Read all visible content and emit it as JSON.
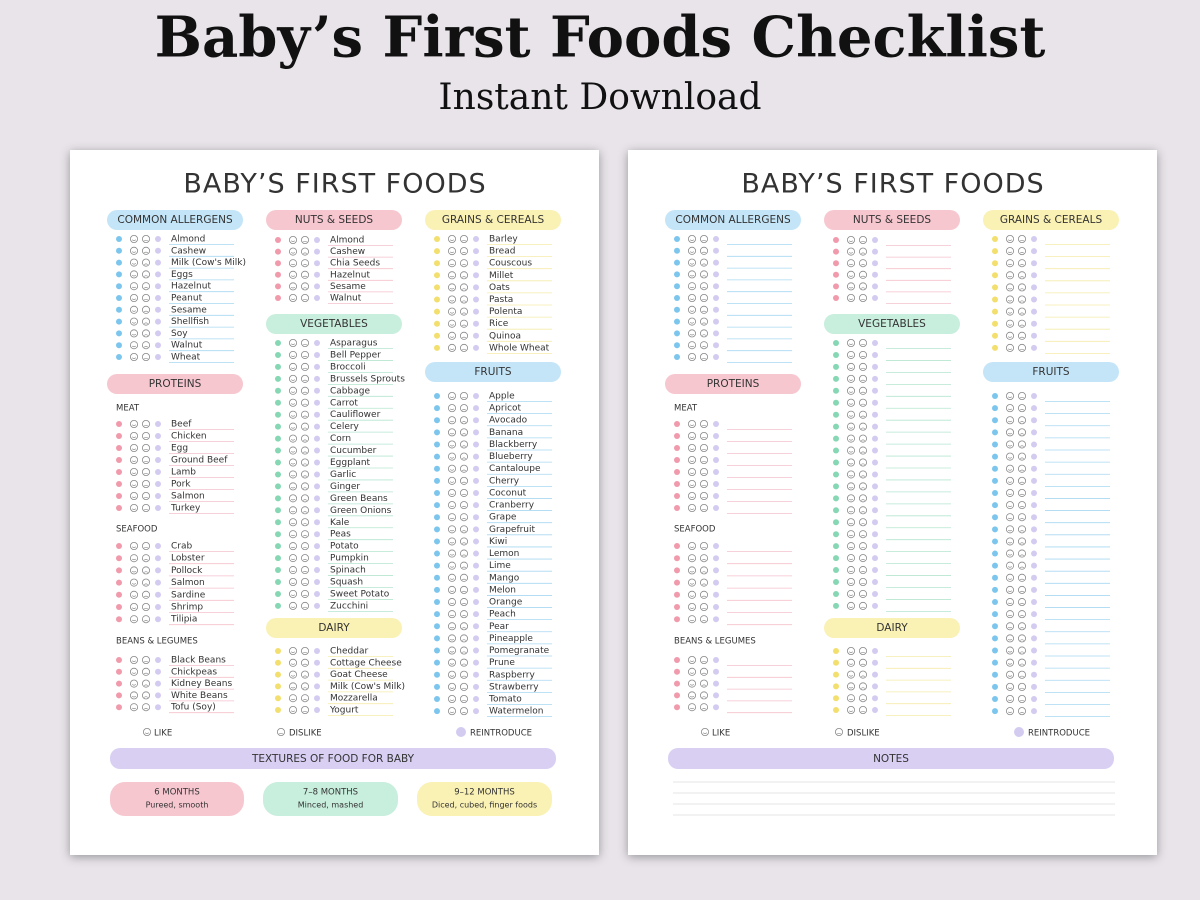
{
  "header": {
    "title": "Baby’s First Foods Checklist",
    "subtitle": "Instant Download"
  },
  "sheets": [
    {
      "title": "BABY’S FIRST FOODS",
      "sections": [
        {
          "heading": "COMMON ALLERGENS",
          "items": [
            "Almond",
            "Cashew",
            "Milk (Cow's Milk)",
            "Eggs",
            "Hazelnut",
            "Peanut",
            "Sesame",
            "Shellfish",
            "Soy",
            "Walnut",
            "Wheat"
          ]
        },
        {
          "heading": "PROTEINS",
          "groups": [
            {
              "label": "MEAT",
              "items": [
                "Beef",
                "Chicken",
                "Egg",
                "Ground Beef",
                "Lamb",
                "Pork",
                "Salmon",
                "Turkey"
              ]
            },
            {
              "label": "SEAFOOD",
              "items": [
                "Crab",
                "Lobster",
                "Pollock",
                "Salmon",
                "Sardine",
                "Shrimp",
                "Tilipia"
              ]
            },
            {
              "label": "BEANS & LEGUMES",
              "items": [
                "Black Beans",
                "Chickpeas",
                "Kidney Beans",
                "White Beans",
                "Tofu (Soy)"
              ]
            }
          ]
        },
        {
          "heading": "NUTS & SEEDS",
          "items": [
            "Almond",
            "Cashew",
            "Chia Seeds",
            "Hazelnut",
            "Sesame",
            "Walnut"
          ]
        },
        {
          "heading": "VEGETABLES",
          "items": [
            "Asparagus",
            "Bell Pepper",
            "Broccoli",
            "Brussels Sprouts",
            "Cabbage",
            "Carrot",
            "Cauliflower",
            "Celery",
            "Corn",
            "Cucumber",
            "Eggplant",
            "Garlic",
            "Ginger",
            "Green Beans",
            "Green Onions",
            "Kale",
            "Peas",
            "Potato",
            "Pumpkin",
            "Spinach",
            "Squash",
            "Sweet Potato",
            "Zucchini"
          ]
        },
        {
          "heading": "DAIRY",
          "items": [
            "Cheddar",
            "Cottage Cheese",
            "Goat Cheese",
            "Milk (Cow's Milk)",
            "Mozzarella",
            "Yogurt"
          ]
        },
        {
          "heading": "GRAINS & CEREALS",
          "items": [
            "Barley",
            "Bread",
            "Couscous",
            "Millet",
            "Oats",
            "Pasta",
            "Polenta",
            "Rice",
            "Quinoa",
            "Whole Wheat"
          ]
        },
        {
          "heading": "FRUITS",
          "items": [
            "Apple",
            "Apricot",
            "Avocado",
            "Banana",
            "Blackberry",
            "Blueberry",
            "Cantaloupe",
            "Cherry",
            "Coconut",
            "Cranberry",
            "Grape",
            "Grapefruit",
            "Kiwi",
            "Lemon",
            "Lime",
            "Mango",
            "Melon",
            "Orange",
            "Peach",
            "Pear",
            "Pineapple",
            "Pomegranate",
            "Prune",
            "Raspberry",
            "Strawberry",
            "Tomato",
            "Watermelon"
          ]
        }
      ],
      "legend": [
        "LIKE",
        "DISLIKE",
        "REINTRODUCE"
      ],
      "footer": {
        "heading": "TEXTURES OF FOOD FOR BABY",
        "cards": [
          {
            "title": "6 MONTHS",
            "text": "Pureed, smooth"
          },
          {
            "title": "7–8 MONTHS",
            "text": "Minced, mashed"
          },
          {
            "title": "9–12 MONTHS",
            "text": "Diced, cubed, finger foods"
          }
        ]
      }
    },
    {
      "title": "BABY’S FIRST FOODS",
      "sections": [
        {
          "heading": "COMMON ALLERGENS"
        },
        {
          "heading": "PROTEINS",
          "groups": [
            {
              "label": "MEAT"
            },
            {
              "label": "SEAFOOD"
            },
            {
              "label": "BEANS & LEGUMES"
            }
          ]
        },
        {
          "heading": "NUTS & SEEDS"
        },
        {
          "heading": "VEGETABLES"
        },
        {
          "heading": "DAIRY"
        },
        {
          "heading": "GRAINS & CEREALS"
        },
        {
          "heading": "FRUITS"
        }
      ],
      "legend": [
        "LIKE",
        "DISLIKE",
        "REINTRODUCE"
      ],
      "footer": {
        "heading": "NOTES"
      }
    }
  ]
}
